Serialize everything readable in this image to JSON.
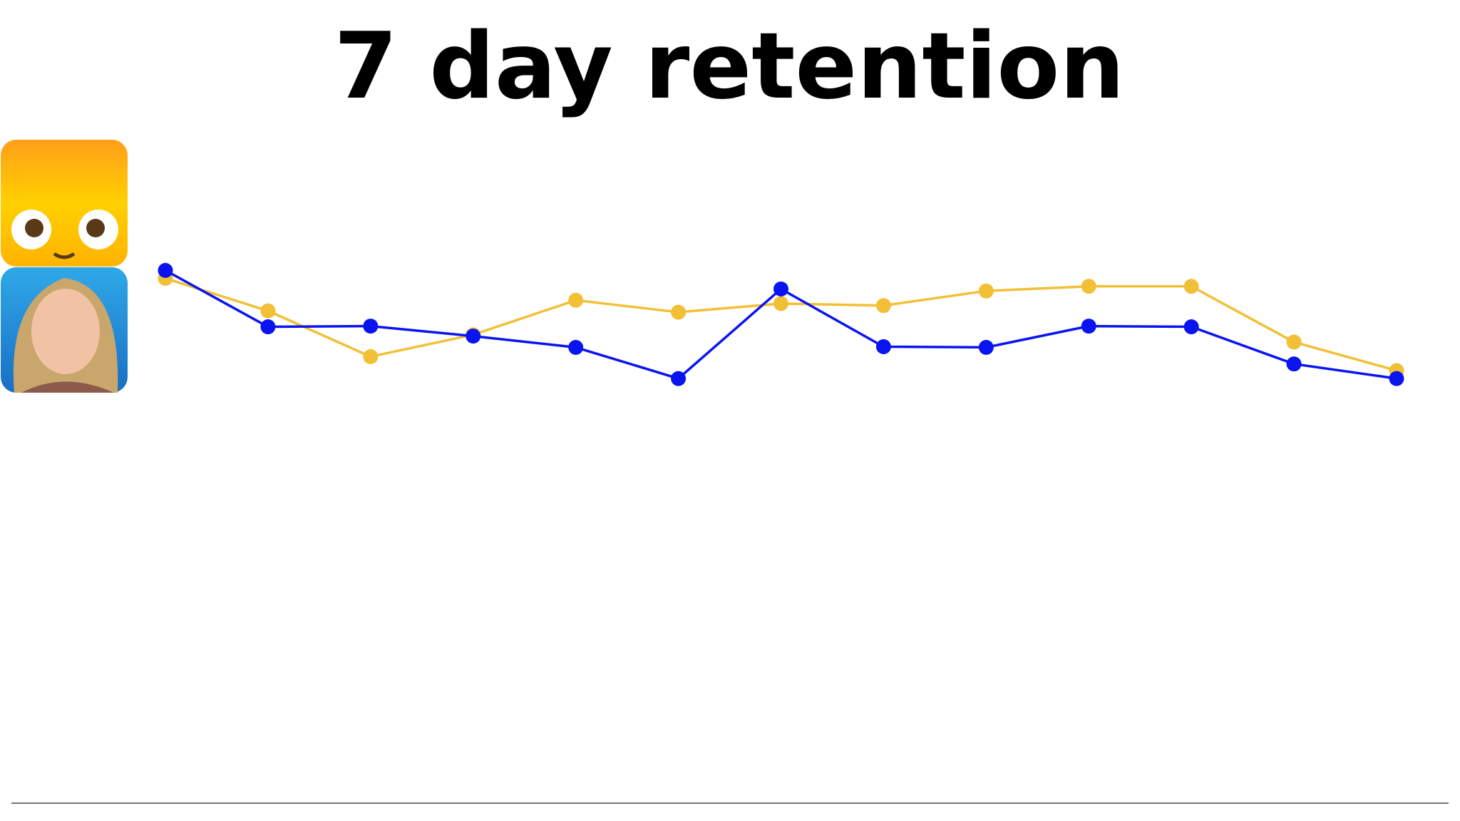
{
  "chart_data": {
    "type": "line",
    "title": "7 day retention",
    "categories": [
      null,
      null,
      null,
      null,
      null,
      null,
      null,
      null,
      null,
      null,
      null,
      null,
      null
    ],
    "series": [
      {
        "color": "#f2c037",
        "values": [
          79.1,
          74.2,
          67.3,
          70.6,
          75.8,
          74.0,
          75.3,
          75.0,
          77.2,
          77.9,
          77.9,
          69.5,
          65.2
        ]
      },
      {
        "color": "#0a14f0",
        "values": [
          80.3,
          71.8,
          71.9,
          70.4,
          68.7,
          64.0,
          77.5,
          68.8,
          68.7,
          71.9,
          71.8,
          66.2,
          64.0
        ]
      }
    ],
    "ylim": [
      0,
      100
    ]
  }
}
